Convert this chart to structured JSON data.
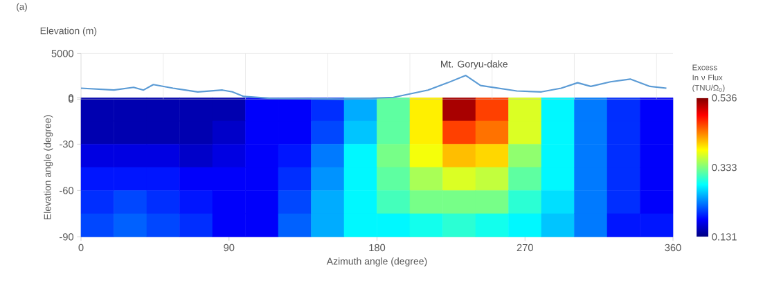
{
  "chart_data": [
    {
      "type": "line",
      "title": "(a)",
      "ylabel": "Elevation (m)",
      "x": [
        0,
        20,
        32,
        38,
        44,
        56,
        71,
        86,
        92,
        99,
        115,
        160,
        190,
        211,
        223,
        234,
        243,
        265,
        280,
        292,
        302,
        310,
        322,
        334,
        346,
        356
      ],
      "values": [
        1200,
        1000,
        1300,
        1000,
        1600,
        1200,
        800,
        1000,
        800,
        300,
        100,
        0,
        200,
        1000,
        1800,
        2600,
        1500,
        900,
        800,
        1200,
        1800,
        1400,
        1900,
        2200,
        1400,
        1200
      ],
      "color": "#5b9bd5",
      "annotations": [
        {
          "text": "Mt. Goryu-dake",
          "x": 234,
          "y": 2600
        }
      ],
      "xlim": [
        0,
        360
      ],
      "ylim": [
        0,
        5000
      ],
      "xticks": [
        {
          "value": 50,
          "label": null
        },
        {
          "value": 100,
          "label": null
        },
        {
          "value": 150,
          "label": null
        },
        {
          "value": 200,
          "label": null
        },
        {
          "value": 250,
          "label": null
        },
        {
          "value": 300,
          "label": null
        },
        {
          "value": 350,
          "label": null
        }
      ],
      "yticks": [
        0,
        5000
      ],
      "grid": "x",
      "tick_labels": "y"
    },
    {
      "type": "heatmap",
      "xlabel": "Azimuth angle (degree)",
      "ylabel": "Elevation angle (degree)",
      "clabel": "Excess In ν Flux (TNU/Ω$_{0}$)",
      "x": [
        10,
        30,
        50,
        70,
        90,
        110,
        130,
        150,
        170,
        190,
        210,
        230,
        250,
        270,
        290,
        310,
        330,
        350
      ],
      "y": [
        -7.5,
        -22.5,
        -37.5,
        -52.5,
        -67.5,
        -82.5
      ],
      "cells": [
        [
          0.15,
          0.15,
          0.15,
          0.15,
          0.15,
          0.18,
          0.18,
          0.2,
          0.25,
          0.32,
          0.39,
          0.52,
          0.46,
          0.37,
          0.28,
          0.23,
          0.2,
          0.18
        ],
        [
          0.15,
          0.15,
          0.15,
          0.15,
          0.16,
          0.18,
          0.18,
          0.21,
          0.26,
          0.32,
          0.39,
          0.46,
          0.44,
          0.37,
          0.28,
          0.23,
          0.2,
          0.18
        ],
        [
          0.17,
          0.17,
          0.17,
          0.16,
          0.17,
          0.18,
          0.19,
          0.23,
          0.28,
          0.33,
          0.38,
          0.41,
          0.4,
          0.34,
          0.28,
          0.23,
          0.2,
          0.18
        ],
        [
          0.19,
          0.19,
          0.19,
          0.18,
          0.18,
          0.18,
          0.2,
          0.24,
          0.28,
          0.32,
          0.35,
          0.37,
          0.36,
          0.32,
          0.28,
          0.23,
          0.2,
          0.18
        ],
        [
          0.2,
          0.21,
          0.2,
          0.19,
          0.18,
          0.18,
          0.21,
          0.25,
          0.28,
          0.31,
          0.33,
          0.33,
          0.33,
          0.3,
          0.27,
          0.23,
          0.2,
          0.18
        ],
        [
          0.21,
          0.22,
          0.21,
          0.2,
          0.18,
          0.18,
          0.22,
          0.25,
          0.28,
          0.28,
          0.29,
          0.3,
          0.29,
          0.28,
          0.26,
          0.23,
          0.19,
          0.19
        ]
      ],
      "clim": [
        0.131,
        0.536
      ],
      "cticks": [
        0.131,
        0.333,
        0.536
      ],
      "xlim": [
        0,
        360
      ],
      "ylim": [
        -90,
        0
      ],
      "xticks": [
        0,
        90,
        180,
        270,
        360
      ],
      "yticks": [
        0,
        -30,
        -60,
        -90
      ]
    }
  ]
}
